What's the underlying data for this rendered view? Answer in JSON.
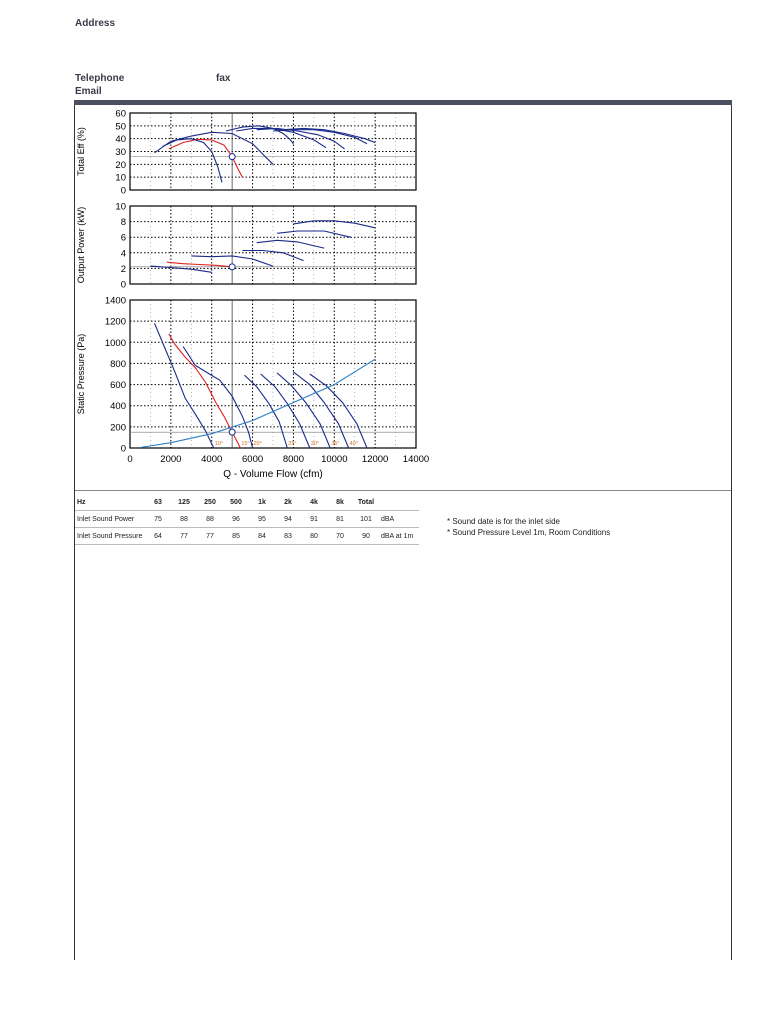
{
  "header": {
    "address_label": "Address",
    "telephone_label": "Telephone",
    "fax_label": "fax",
    "email_label": "Email"
  },
  "chart_data": [
    {
      "type": "line",
      "ylabel": "Total Eff (%)",
      "ylim": [
        0,
        60
      ],
      "yticks": [
        0,
        10,
        20,
        30,
        40,
        50,
        60
      ],
      "xlim": [
        0,
        14000
      ],
      "grid": true,
      "operating_point": {
        "x": 5000,
        "y": 26
      },
      "series": [
        {
          "color": "#e02020",
          "points": [
            [
              1900,
              32
            ],
            [
              2600,
              37
            ],
            [
              3300,
              39.5
            ],
            [
              4000,
              39
            ],
            [
              4600,
              35
            ],
            [
              5000,
              26
            ],
            [
              5300,
              16
            ],
            [
              5500,
              10
            ]
          ]
        },
        {
          "color": "#1a2a8a",
          "points": [
            [
              1600,
              34
            ],
            [
              2300,
              39
            ],
            [
              3000,
              40
            ],
            [
              3600,
              37
            ],
            [
              4000,
              30
            ],
            [
              4300,
              18
            ],
            [
              4500,
              6
            ]
          ]
        },
        {
          "color": "#1a2a8a",
          "points": [
            [
              1200,
              29
            ],
            [
              2000,
              38
            ],
            [
              3000,
              42
            ],
            [
              4000,
              45
            ],
            [
              5000,
              44
            ],
            [
              6000,
              36
            ],
            [
              6500,
              28
            ],
            [
              7000,
              20
            ]
          ]
        },
        {
          "color": "#1a2a8a",
          "points": [
            [
              4700,
              46
            ],
            [
              5500,
              49
            ],
            [
              6300,
              50
            ],
            [
              7000,
              48
            ],
            [
              7500,
              44
            ],
            [
              7800,
              40
            ],
            [
              8000,
              36
            ]
          ]
        },
        {
          "color": "#1a2a8a",
          "points": [
            [
              5200,
              46
            ],
            [
              6000,
              48
            ],
            [
              7000,
              48
            ],
            [
              8000,
              45
            ],
            [
              9000,
              39
            ],
            [
              9600,
              33
            ]
          ]
        },
        {
          "color": "#1a2a8a",
          "points": [
            [
              6200,
              47
            ],
            [
              7200,
              48
            ],
            [
              8200,
              46
            ],
            [
              9200,
              43
            ],
            [
              10000,
              38
            ],
            [
              10500,
              32
            ]
          ]
        },
        {
          "color": "#1a2a8a",
          "points": [
            [
              7000,
              46
            ],
            [
              8000,
              47
            ],
            [
              9000,
              47
            ],
            [
              10000,
              45
            ],
            [
              11000,
              41
            ],
            [
              11600,
              36
            ]
          ]
        },
        {
          "color": "#1a2a8a",
          "points": [
            [
              7500,
              47
            ],
            [
              8500,
              48
            ],
            [
              9500,
              47
            ],
            [
              10500,
              44
            ],
            [
              11500,
              40
            ],
            [
              12000,
              37
            ]
          ]
        }
      ]
    },
    {
      "type": "line",
      "ylabel": "Output Power (kW)",
      "ylim": [
        0,
        10
      ],
      "yticks": [
        0,
        2,
        4,
        6,
        8,
        10
      ],
      "xlim": [
        0,
        14000
      ],
      "grid": true,
      "operating_point": {
        "x": 5000,
        "y": 2.2
      },
      "series": [
        {
          "color": "#e02020",
          "points": [
            [
              1800,
              2.8
            ],
            [
              2600,
              2.6
            ],
            [
              3400,
              2.5
            ],
            [
              4200,
              2.4
            ],
            [
              5000,
              2.2
            ]
          ]
        },
        {
          "color": "#1a2a8a",
          "points": [
            [
              1000,
              2.3
            ],
            [
              2000,
              2.1
            ],
            [
              3000,
              1.9
            ],
            [
              4000,
              1.5
            ]
          ]
        },
        {
          "color": "#1a2a8a",
          "points": [
            [
              3000,
              3.6
            ],
            [
              4000,
              3.5
            ],
            [
              5000,
              3.6
            ],
            [
              6000,
              3.2
            ],
            [
              7000,
              2.3
            ]
          ]
        },
        {
          "color": "#1a2a8a",
          "points": [
            [
              5500,
              4.3
            ],
            [
              6500,
              4.3
            ],
            [
              7500,
              4.0
            ],
            [
              8500,
              3.0
            ]
          ]
        },
        {
          "color": "#1a2a8a",
          "points": [
            [
              6200,
              5.3
            ],
            [
              7200,
              5.6
            ],
            [
              8200,
              5.4
            ],
            [
              9500,
              4.6
            ]
          ]
        },
        {
          "color": "#1a2a8a",
          "points": [
            [
              7200,
              6.5
            ],
            [
              8200,
              6.8
            ],
            [
              9500,
              6.8
            ],
            [
              10800,
              6.0
            ]
          ]
        },
        {
          "color": "#1a2a8a",
          "points": [
            [
              8000,
              7.7
            ],
            [
              9000,
              8.1
            ],
            [
              10000,
              8.1
            ],
            [
              11000,
              7.8
            ],
            [
              12000,
              7.2
            ]
          ]
        }
      ]
    },
    {
      "type": "line",
      "ylabel": "Static Pressure (Pa)",
      "xlabel": "Q - Volume Flow (cfm)",
      "ylim": [
        0,
        1400
      ],
      "yticks": [
        0,
        200,
        400,
        600,
        800,
        1000,
        1200,
        1400
      ],
      "xlim": [
        0,
        14000
      ],
      "xticks": [
        0,
        2000,
        4000,
        6000,
        8000,
        10000,
        12000,
        14000
      ],
      "grid": true,
      "operating_point": {
        "x": 5000,
        "y": 150
      },
      "angle_labels": [
        "10°",
        "15°",
        "20°",
        "25°",
        "30°",
        "35°",
        "40°"
      ],
      "series": [
        {
          "color": "#e02020",
          "points": [
            [
              1900,
              1080
            ],
            [
              2200,
              980
            ],
            [
              2700,
              860
            ],
            [
              3200,
              760
            ],
            [
              3700,
              620
            ],
            [
              4200,
              430
            ],
            [
              4600,
              300
            ],
            [
              5000,
              150
            ],
            [
              5300,
              40
            ],
            [
              5400,
              0
            ]
          ]
        },
        {
          "color": "#1a2a8a",
          "points": [
            [
              1200,
              1180
            ],
            [
              1700,
              950
            ],
            [
              2200,
              720
            ],
            [
              2700,
              470
            ],
            [
              3200,
              320
            ],
            [
              3700,
              160
            ],
            [
              4000,
              40
            ],
            [
              4100,
              0
            ]
          ]
        },
        {
          "color": "#1a2a8a",
          "points": [
            [
              2600,
              960
            ],
            [
              3200,
              780
            ],
            [
              3800,
              710
            ],
            [
              4400,
              640
            ],
            [
              5000,
              490
            ],
            [
              5500,
              300
            ],
            [
              5800,
              150
            ],
            [
              6000,
              0
            ]
          ]
        },
        {
          "color": "#1a2a8a",
          "points": [
            [
              5600,
              690
            ],
            [
              6200,
              580
            ],
            [
              6800,
              420
            ],
            [
              7300,
              250
            ],
            [
              7700,
              0
            ]
          ]
        },
        {
          "color": "#1a2a8a",
          "points": [
            [
              6400,
              700
            ],
            [
              7100,
              580
            ],
            [
              7700,
              420
            ],
            [
              8300,
              230
            ],
            [
              8800,
              0
            ]
          ]
        },
        {
          "color": "#1a2a8a",
          "points": [
            [
              7200,
              710
            ],
            [
              7900,
              590
            ],
            [
              8600,
              430
            ],
            [
              9300,
              230
            ],
            [
              9800,
              0
            ]
          ]
        },
        {
          "color": "#1a2a8a",
          "points": [
            [
              8000,
              720
            ],
            [
              8800,
              600
            ],
            [
              9500,
              430
            ],
            [
              10200,
              230
            ],
            [
              10700,
              0
            ]
          ]
        },
        {
          "color": "#1a2a8a",
          "points": [
            [
              8800,
              700
            ],
            [
              9600,
              590
            ],
            [
              10400,
              430
            ],
            [
              11100,
              230
            ],
            [
              11600,
              0
            ]
          ]
        },
        {
          "color": "#2a80c8",
          "points": [
            [
              500,
              5
            ],
            [
              2000,
              50
            ],
            [
              4000,
              135
            ],
            [
              6000,
              260
            ],
            [
              8000,
              430
            ],
            [
              10000,
              600
            ],
            [
              12000,
              840
            ]
          ]
        }
      ]
    }
  ],
  "sound_table": {
    "headers": [
      "Hz",
      "63",
      "125",
      "250",
      "500",
      "1k",
      "2k",
      "4k",
      "8k",
      "Total",
      ""
    ],
    "rows": [
      [
        "Inlet Sound Power",
        "75",
        "88",
        "88",
        "96",
        "95",
        "94",
        "91",
        "81",
        "101",
        "dBA"
      ],
      [
        "Inlet Sound Pressure",
        "64",
        "77",
        "77",
        "85",
        "84",
        "83",
        "80",
        "70",
        "90",
        "dBA at 1m"
      ]
    ]
  },
  "notes": [
    "* Sound date is for the inlet side",
    "* Sound Pressure Level 1m, Room Conditions"
  ]
}
